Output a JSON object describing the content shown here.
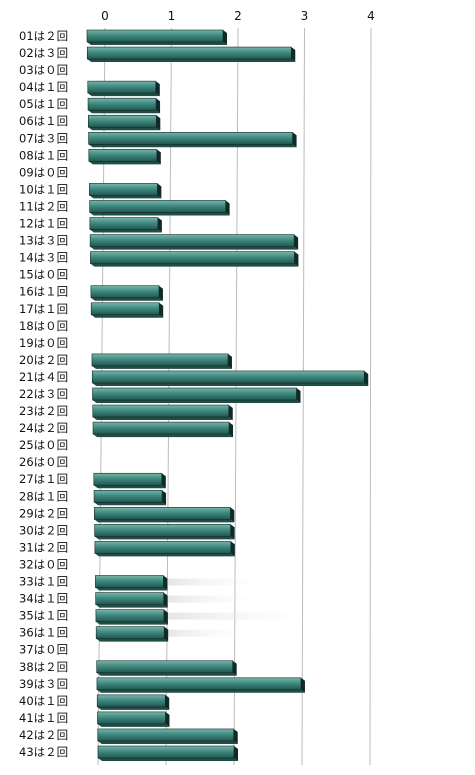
{
  "chart_data": {
    "type": "bar",
    "orientation": "horizontal",
    "title": "",
    "xlabel": "",
    "ylabel": "",
    "xlim": [
      0,
      4
    ],
    "x_ticks": [
      "0",
      "1",
      "2",
      "3",
      "4"
    ],
    "grid": true,
    "legend": "none",
    "categories": [
      "01は２回",
      "02は３回",
      "03は０回",
      "04は１回",
      "05は１回",
      "06は１回",
      "07は３回",
      "08は１回",
      "09は０回",
      "10は１回",
      "11は２回",
      "12は１回",
      "13は３回",
      "14は３回",
      "15は０回",
      "16は１回",
      "17は１回",
      "18は０回",
      "19は０回",
      "20は２回",
      "21は４回",
      "22は３回",
      "23は２回",
      "24は２回",
      "25は０回",
      "26は０回",
      "27は１回",
      "28は１回",
      "29は２回",
      "30は２回",
      "31は２回",
      "32は０回",
      "33は１回",
      "34は１回",
      "35は１回",
      "36は１回",
      "37は０回",
      "38は２回",
      "39は３回",
      "40は１回",
      "41は１回",
      "42は２回",
      "43は２回"
    ],
    "values": [
      2,
      3,
      0,
      1,
      1,
      1,
      3,
      1,
      0,
      1,
      2,
      1,
      3,
      3,
      0,
      1,
      1,
      0,
      0,
      2,
      4,
      3,
      2,
      2,
      0,
      0,
      1,
      1,
      2,
      2,
      2,
      0,
      1,
      1,
      1,
      1,
      0,
      2,
      3,
      1,
      1,
      2,
      2
    ],
    "colors": {
      "bar_face": "#3f8a80",
      "bar_light": "#79b4aa",
      "bar_dark": "#1f4d47",
      "bar_edge": "#0f2a27",
      "grid": "#bbbbbb"
    }
  }
}
